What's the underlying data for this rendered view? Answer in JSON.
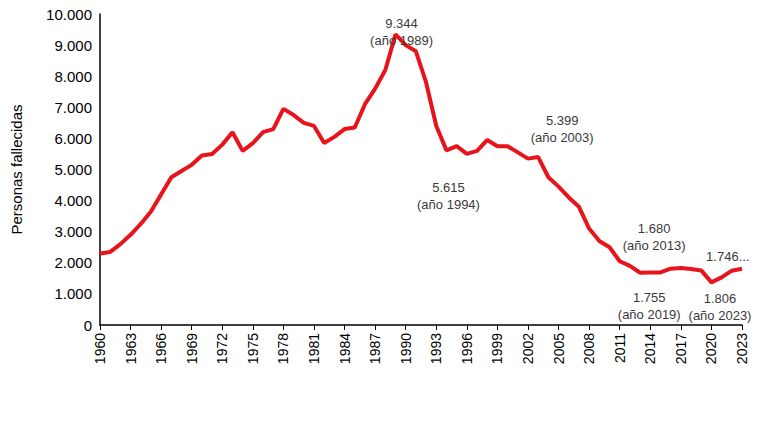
{
  "chart_data": {
    "type": "line",
    "y_label": "Personas fallecidas",
    "x": [
      1960,
      1961,
      1962,
      1963,
      1964,
      1965,
      1966,
      1967,
      1968,
      1969,
      1970,
      1971,
      1972,
      1973,
      1974,
      1975,
      1976,
      1977,
      1978,
      1979,
      1980,
      1981,
      1982,
      1983,
      1984,
      1985,
      1986,
      1987,
      1988,
      1989,
      1990,
      1991,
      1992,
      1993,
      1994,
      1995,
      1996,
      1997,
      1998,
      1999,
      2000,
      2001,
      2002,
      2003,
      2004,
      2005,
      2006,
      2007,
      2008,
      2009,
      2010,
      2011,
      2012,
      2013,
      2014,
      2015,
      2016,
      2017,
      2018,
      2019,
      2020,
      2021,
      2022,
      2023
    ],
    "values": [
      2300,
      2350,
      2600,
      2900,
      3250,
      3650,
      4200,
      4750,
      4950,
      5150,
      5450,
      5500,
      5800,
      6200,
      5600,
      5850,
      6200,
      6300,
      6950,
      6750,
      6500,
      6400,
      5850,
      6050,
      6300,
      6350,
      7100,
      7600,
      8200,
      9344,
      9000,
      8800,
      7800,
      6400,
      5615,
      5750,
      5500,
      5600,
      5950,
      5750,
      5750,
      5550,
      5350,
      5399,
      4750,
      4450,
      4100,
      3800,
      3100,
      2700,
      2500,
      2050,
      1900,
      1680,
      1690,
      1690,
      1810,
      1830,
      1800,
      1755,
      1370,
      1530,
      1746,
      1806
    ],
    "color": "#e8141b",
    "xlim": [
      1960,
      2023
    ],
    "xticks": [
      1960,
      1963,
      1966,
      1969,
      1972,
      1975,
      1978,
      1981,
      1984,
      1987,
      1990,
      1993,
      1996,
      1999,
      2002,
      2005,
      2008,
      2011,
      2014,
      2017,
      2020,
      2023
    ],
    "ylim": [
      0,
      10000
    ],
    "yticks": [
      0,
      {
        "value": 1000,
        "label": "1.000"
      },
      {
        "value": 2000,
        "label": "2.000"
      },
      {
        "value": 3000,
        "label": "3.000"
      },
      {
        "value": 4000,
        "label": "4.000"
      },
      {
        "value": 5000,
        "label": "5.000"
      },
      {
        "value": 6000,
        "label": "6.000"
      },
      {
        "value": 7000,
        "label": "7.000"
      },
      {
        "value": 8000,
        "label": "8.000"
      },
      {
        "value": 9000,
        "label": "9.000"
      },
      {
        "value": 10000,
        "label": "10.000"
      }
    ],
    "grid": false,
    "annotations": [
      {
        "text": "9.344\n(año 1989)",
        "x": 1989
      },
      {
        "text": "5.615\n(año 1994)",
        "x": 1994
      },
      {
        "text": "5.399\n(año 2003)",
        "x": 2003
      },
      {
        "text": "1.680\n(año 2013)",
        "x": 2013
      },
      {
        "text": "1.755\n(año 2019)",
        "x": 2019
      },
      {
        "text": "1.806\n(año 2023)",
        "x": 2023
      },
      {
        "text": "1.746...",
        "x": 2022
      }
    ]
  }
}
